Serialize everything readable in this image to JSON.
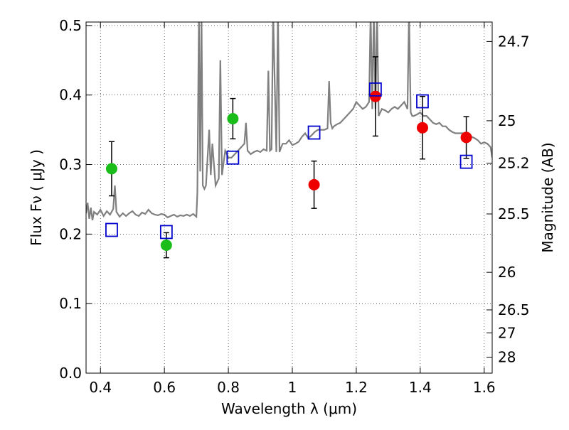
{
  "chart_data": {
    "type": "scatter",
    "title": "",
    "xlabel": "Wavelength  λ (μm)",
    "ylabel": "Flux  Fν  ( μJy )",
    "ylabel_right": "Magnitude (AB)",
    "xlim": [
      0.355,
      1.625
    ],
    "ylim": [
      0.0,
      0.505
    ],
    "grid": true,
    "grid_style": "dotted",
    "x_ticks": [
      0.4,
      0.6,
      0.8,
      1.0,
      1.2,
      1.4,
      1.6
    ],
    "x_tick_labels": [
      "0.4",
      "0.6",
      "0.8",
      "1",
      "1.2",
      "1.4",
      "1.6"
    ],
    "y_ticks": [
      0.0,
      0.1,
      0.2,
      0.3,
      0.4,
      0.5
    ],
    "y_tick_labels": [
      "0.0",
      "0.1",
      "0.2",
      "0.3",
      "0.4",
      "0.5"
    ],
    "right_ticks": [
      {
        "label": "24.7",
        "flux": 0.477
      },
      {
        "label": "25",
        "flux": 0.363
      },
      {
        "label": "25.2",
        "flux": 0.302
      },
      {
        "label": "25.5",
        "flux": 0.229
      },
      {
        "label": "26",
        "flux": 0.145
      },
      {
        "label": "26.5",
        "flux": 0.091
      },
      {
        "label": "27",
        "flux": 0.058
      },
      {
        "label": "28",
        "flux": 0.023
      }
    ],
    "colors": {
      "spectrum": "#808080",
      "green": "#1bbd1b",
      "red": "#ee0000",
      "model_box": "#0000cc",
      "errorbar": "#000000",
      "axis": "#000000",
      "grid": "#000000"
    },
    "series": [
      {
        "kind": "observed",
        "color": "green",
        "points": [
          {
            "x": 0.435,
            "y": 0.294,
            "err": 0.039
          },
          {
            "x": 0.606,
            "y": 0.184,
            "err": 0.018
          },
          {
            "x": 0.814,
            "y": 0.366,
            "err": 0.029
          }
        ]
      },
      {
        "kind": "observed",
        "color": "red",
        "points": [
          {
            "x": 1.068,
            "y": 0.271,
            "err": 0.034
          },
          {
            "x": 1.26,
            "y": 0.398,
            "err": 0.057
          },
          {
            "x": 1.407,
            "y": 0.353,
            "err": 0.045
          },
          {
            "x": 1.544,
            "y": 0.339,
            "err": 0.03
          }
        ]
      },
      {
        "kind": "model_photometry",
        "color": "model_box",
        "points": [
          {
            "x": 0.435,
            "y": 0.206
          },
          {
            "x": 0.606,
            "y": 0.203
          },
          {
            "x": 0.814,
            "y": 0.31
          },
          {
            "x": 1.068,
            "y": 0.346
          },
          {
            "x": 1.26,
            "y": 0.408
          },
          {
            "x": 1.407,
            "y": 0.391
          },
          {
            "x": 1.544,
            "y": 0.304
          }
        ]
      },
      {
        "kind": "spectrum",
        "color": "spectrum",
        "x": [
          0.355,
          0.36,
          0.365,
          0.37,
          0.375,
          0.38,
          0.39,
          0.4,
          0.41,
          0.42,
          0.43,
          0.44,
          0.445,
          0.45,
          0.46,
          0.47,
          0.48,
          0.49,
          0.5,
          0.51,
          0.52,
          0.53,
          0.54,
          0.55,
          0.56,
          0.57,
          0.58,
          0.59,
          0.6,
          0.61,
          0.62,
          0.63,
          0.64,
          0.65,
          0.66,
          0.67,
          0.68,
          0.69,
          0.7,
          0.703,
          0.708,
          0.712,
          0.716,
          0.72,
          0.725,
          0.73,
          0.74,
          0.745,
          0.75,
          0.76,
          0.77,
          0.775,
          0.78,
          0.79,
          0.8,
          0.81,
          0.82,
          0.83,
          0.84,
          0.85,
          0.855,
          0.86,
          0.87,
          0.88,
          0.89,
          0.9,
          0.91,
          0.92,
          0.925,
          0.93,
          0.935,
          0.94,
          0.95,
          0.955,
          0.96,
          0.965,
          0.97,
          0.98,
          0.99,
          1.0,
          1.01,
          1.02,
          1.03,
          1.04,
          1.05,
          1.06,
          1.07,
          1.08,
          1.09,
          1.1,
          1.11,
          1.115,
          1.12,
          1.125,
          1.13,
          1.14,
          1.15,
          1.16,
          1.17,
          1.18,
          1.19,
          1.2,
          1.21,
          1.22,
          1.23,
          1.24,
          1.245,
          1.25,
          1.255,
          1.26,
          1.265,
          1.27,
          1.28,
          1.29,
          1.3,
          1.31,
          1.32,
          1.33,
          1.34,
          1.35,
          1.36,
          1.365,
          1.37,
          1.375,
          1.38,
          1.39,
          1.4,
          1.41,
          1.42,
          1.43,
          1.44,
          1.45,
          1.46,
          1.47,
          1.48,
          1.49,
          1.5,
          1.51,
          1.52,
          1.53,
          1.54,
          1.55,
          1.56,
          1.57,
          1.58,
          1.59,
          1.6,
          1.61,
          1.62,
          1.625
        ],
        "y": [
          0.23,
          0.245,
          0.222,
          0.238,
          0.22,
          0.232,
          0.228,
          0.235,
          0.226,
          0.233,
          0.228,
          0.236,
          0.27,
          0.232,
          0.225,
          0.23,
          0.226,
          0.23,
          0.233,
          0.228,
          0.226,
          0.231,
          0.229,
          0.235,
          0.23,
          0.228,
          0.227,
          0.229,
          0.228,
          0.224,
          0.226,
          0.228,
          0.225,
          0.227,
          0.226,
          0.228,
          0.226,
          0.229,
          0.225,
          0.26,
          0.52,
          0.29,
          0.52,
          0.27,
          0.265,
          0.27,
          0.35,
          0.285,
          0.33,
          0.27,
          0.28,
          0.45,
          0.285,
          0.32,
          0.31,
          0.31,
          0.315,
          0.32,
          0.325,
          0.33,
          0.36,
          0.32,
          0.315,
          0.318,
          0.32,
          0.318,
          0.322,
          0.32,
          0.435,
          0.32,
          0.322,
          0.52,
          0.318,
          0.52,
          0.318,
          0.325,
          0.33,
          0.33,
          0.335,
          0.328,
          0.33,
          0.333,
          0.34,
          0.345,
          0.338,
          0.342,
          0.347,
          0.35,
          0.35,
          0.35,
          0.352,
          0.42,
          0.36,
          0.352,
          0.355,
          0.358,
          0.36,
          0.365,
          0.37,
          0.375,
          0.38,
          0.39,
          0.385,
          0.38,
          0.383,
          0.39,
          0.52,
          0.38,
          0.52,
          0.38,
          0.52,
          0.37,
          0.38,
          0.378,
          0.375,
          0.38,
          0.383,
          0.38,
          0.385,
          0.39,
          0.38,
          0.52,
          0.375,
          0.37,
          0.37,
          0.372,
          0.375,
          0.37,
          0.37,
          0.365,
          0.36,
          0.358,
          0.36,
          0.355,
          0.355,
          0.35,
          0.347,
          0.345,
          0.345,
          0.345,
          0.345,
          0.34,
          0.34,
          0.338,
          0.335,
          0.33,
          0.332,
          0.33,
          0.325,
          0.31
        ]
      }
    ]
  }
}
